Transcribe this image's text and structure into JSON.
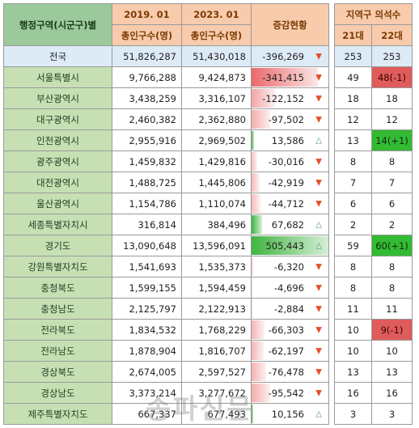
{
  "headers": {
    "region": "행정구역(시군구)별",
    "period_2019": "2019. 01",
    "period_2023": "2023. 01",
    "pop_2019": "총인구수(명)",
    "pop_2023": "총인구수(명)",
    "change": "증감현황",
    "seats": "지역구 의석수",
    "seats_21": "21대",
    "seats_22": "22대"
  },
  "colors": {
    "decrease_bar": "#f8d7d7",
    "increase_bar": "#63be7b",
    "highlight_red": "#e05c5c",
    "highlight_green": "#33bb33"
  },
  "rows": [
    {
      "region": "전국",
      "pop2019": "51,826,287",
      "pop2023": "51,430,018",
      "change": "-396,269",
      "change_num": -396269,
      "dir": "down",
      "s21": "253",
      "s22": "253",
      "s22_hl": ""
    },
    {
      "region": "서울특별시",
      "pop2019": "9,766,288",
      "pop2023": "9,424,873",
      "change": "-341,415",
      "change_num": -341415,
      "dir": "down",
      "s21": "49",
      "s22": "48(-1)",
      "s22_hl": "red"
    },
    {
      "region": "부산광역시",
      "pop2019": "3,438,259",
      "pop2023": "3,316,107",
      "change": "-122,152",
      "change_num": -122152,
      "dir": "down",
      "s21": "18",
      "s22": "18",
      "s22_hl": ""
    },
    {
      "region": "대구광역시",
      "pop2019": "2,460,382",
      "pop2023": "2,362,880",
      "change": "-97,502",
      "change_num": -97502,
      "dir": "down",
      "s21": "12",
      "s22": "12",
      "s22_hl": ""
    },
    {
      "region": "인천광역시",
      "pop2019": "2,955,916",
      "pop2023": "2,969,502",
      "change": "13,586",
      "change_num": 13586,
      "dir": "up",
      "s21": "13",
      "s22": "14(+1)",
      "s22_hl": "green"
    },
    {
      "region": "광주광역시",
      "pop2019": "1,459,832",
      "pop2023": "1,429,816",
      "change": "-30,016",
      "change_num": -30016,
      "dir": "down",
      "s21": "8",
      "s22": "8",
      "s22_hl": ""
    },
    {
      "region": "대전광역시",
      "pop2019": "1,488,725",
      "pop2023": "1,445,806",
      "change": "-42,919",
      "change_num": -42919,
      "dir": "down",
      "s21": "7",
      "s22": "7",
      "s22_hl": ""
    },
    {
      "region": "울산광역시",
      "pop2019": "1,154,786",
      "pop2023": "1,110,074",
      "change": "-44,712",
      "change_num": -44712,
      "dir": "down",
      "s21": "6",
      "s22": "6",
      "s22_hl": ""
    },
    {
      "region": "세종특별자치시",
      "pop2019": "316,814",
      "pop2023": "384,496",
      "change": "67,682",
      "change_num": 67682,
      "dir": "up",
      "s21": "2",
      "s22": "2",
      "s22_hl": ""
    },
    {
      "region": "경기도",
      "pop2019": "13,090,648",
      "pop2023": "13,596,091",
      "change": "505,443",
      "change_num": 505443,
      "dir": "up",
      "s21": "59",
      "s22": "60(+1)",
      "s22_hl": "green"
    },
    {
      "region": "강원특별자치도",
      "pop2019": "1,541,693",
      "pop2023": "1,535,373",
      "change": "-6,320",
      "change_num": -6320,
      "dir": "down",
      "s21": "8",
      "s22": "8",
      "s22_hl": ""
    },
    {
      "region": "충청북도",
      "pop2019": "1,599,155",
      "pop2023": "1,594,459",
      "change": "-4,696",
      "change_num": -4696,
      "dir": "down",
      "s21": "8",
      "s22": "8",
      "s22_hl": ""
    },
    {
      "region": "충청남도",
      "pop2019": "2,125,797",
      "pop2023": "2,122,913",
      "change": "-2,884",
      "change_num": -2884,
      "dir": "down",
      "s21": "11",
      "s22": "11",
      "s22_hl": ""
    },
    {
      "region": "전라북도",
      "pop2019": "1,834,532",
      "pop2023": "1,768,229",
      "change": "-66,303",
      "change_num": -66303,
      "dir": "down",
      "s21": "10",
      "s22": "9(-1)",
      "s22_hl": "red"
    },
    {
      "region": "전라남도",
      "pop2019": "1,878,904",
      "pop2023": "1,816,707",
      "change": "-62,197",
      "change_num": -62197,
      "dir": "down",
      "s21": "10",
      "s22": "10",
      "s22_hl": ""
    },
    {
      "region": "경상북도",
      "pop2019": "2,674,005",
      "pop2023": "2,597,527",
      "change": "-76,478",
      "change_num": -76478,
      "dir": "down",
      "s21": "13",
      "s22": "13",
      "s22_hl": ""
    },
    {
      "region": "경상남도",
      "pop2019": "3,373,214",
      "pop2023": "3,277,672",
      "change": "-95,542",
      "change_num": -95542,
      "dir": "down",
      "s21": "16",
      "s22": "16",
      "s22_hl": ""
    },
    {
      "region": "제주특별자치도",
      "pop2019": "667,337",
      "pop2023": "677,493",
      "change": "10,156",
      "change_num": 10156,
      "dir": "up",
      "s21": "3",
      "s22": "3",
      "s22_hl": ""
    }
  ]
}
